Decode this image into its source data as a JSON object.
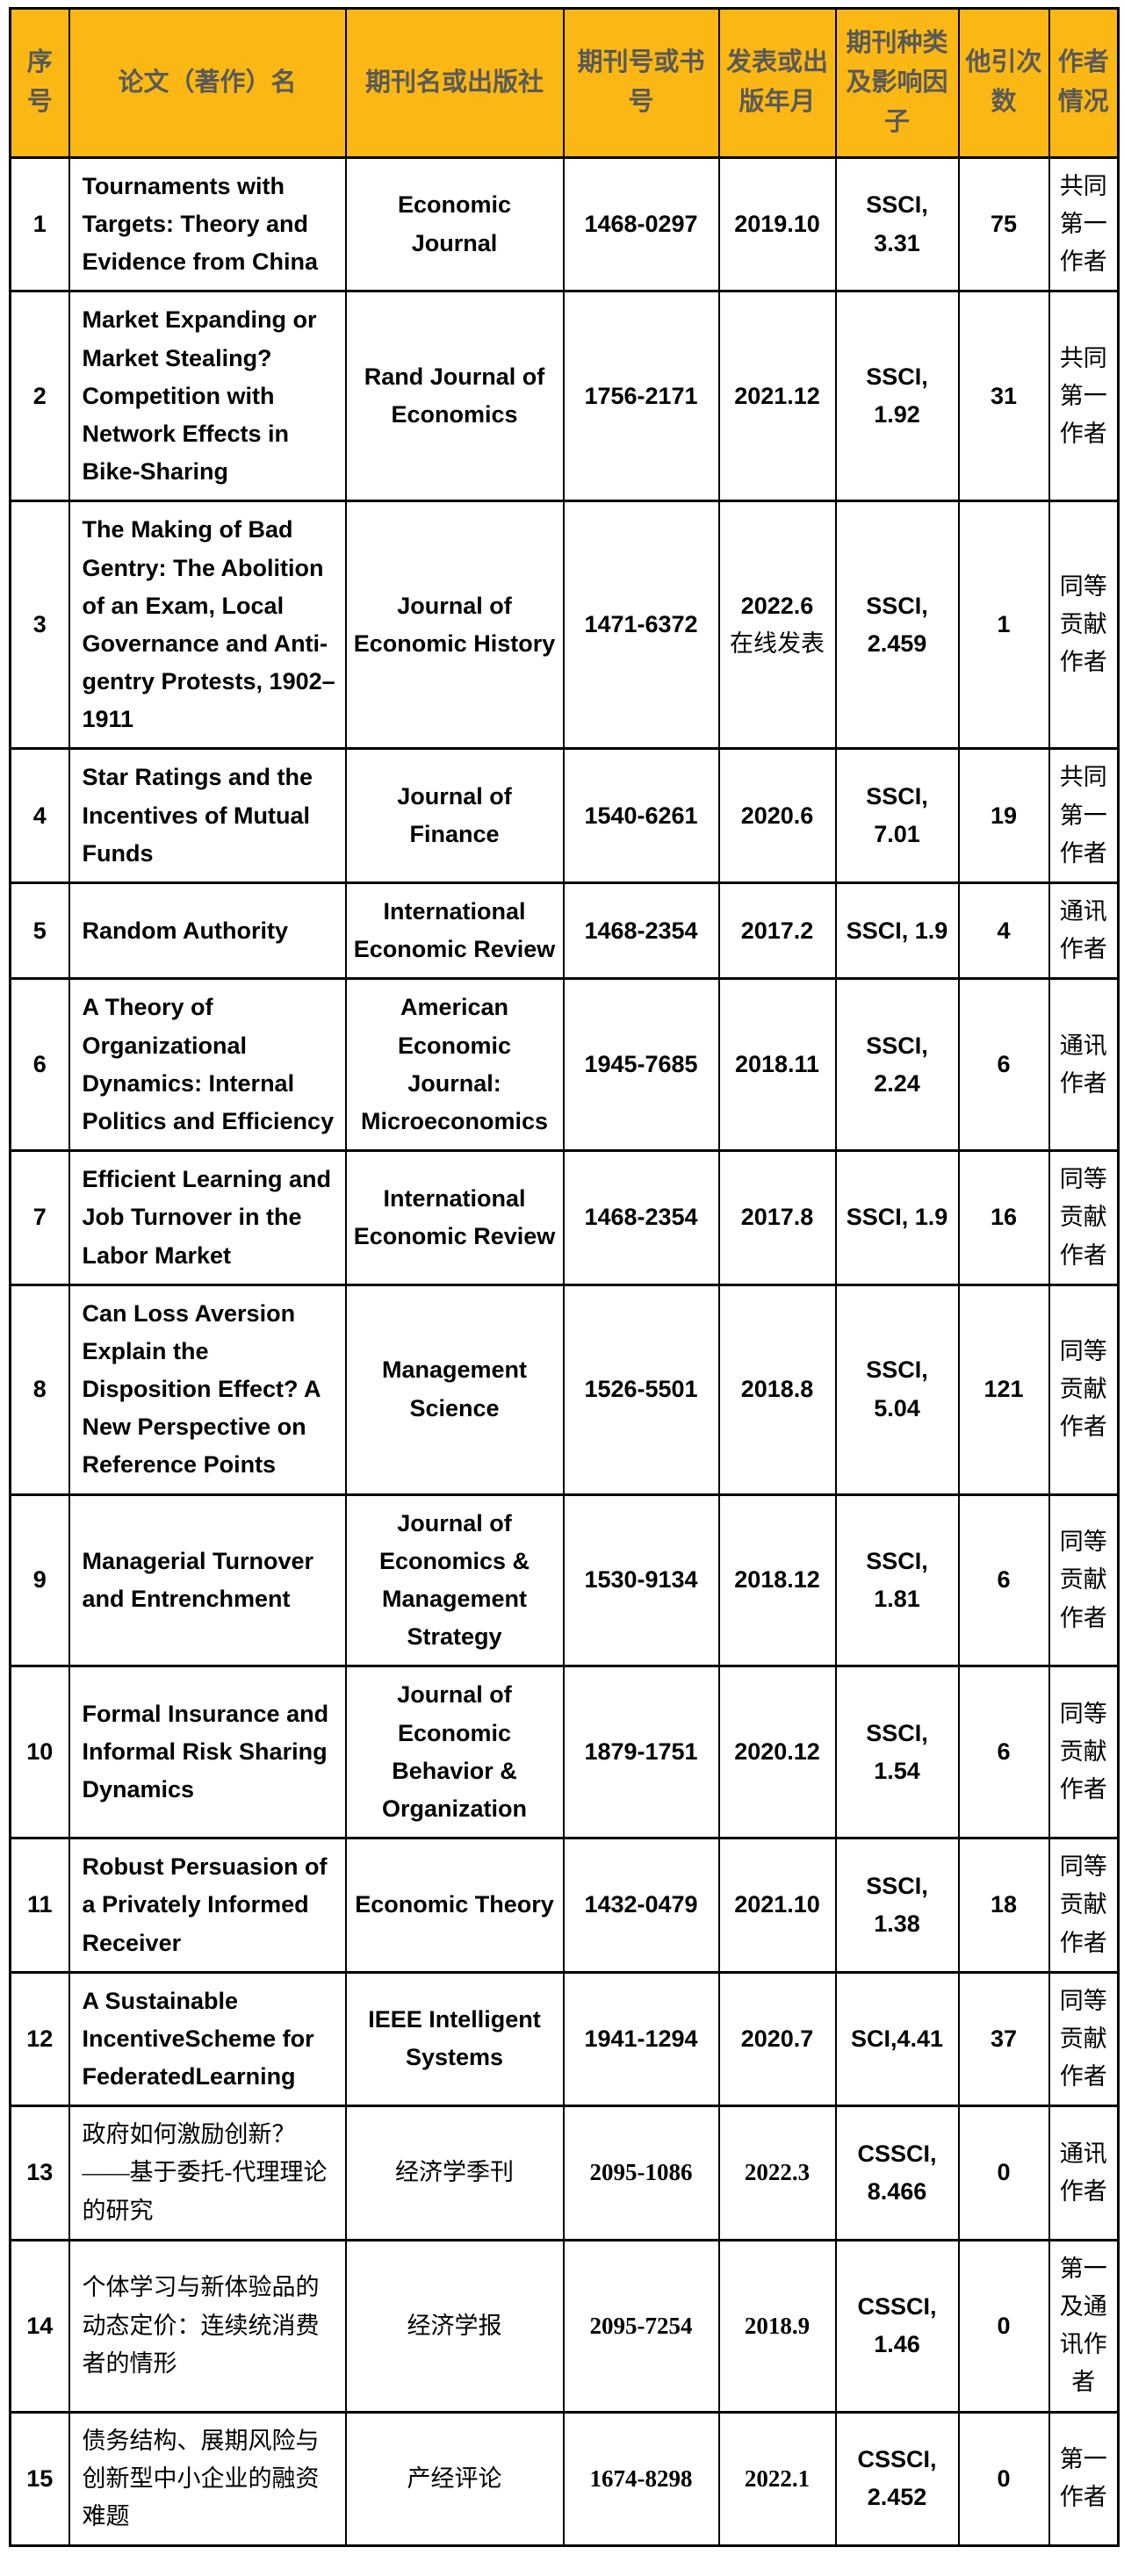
{
  "colors": {
    "header_bg": "#FBB814",
    "header_text": "#595959",
    "body_text": "#000000",
    "border": "#000000"
  },
  "table": {
    "columns": [
      "序号",
      "论文（著作）名",
      "期刊名或出版社",
      "期刊号或书号",
      "发表或出版年月",
      "期刊种类及影响因子",
      "他引次数",
      "作者情况"
    ],
    "rows": [
      {
        "no": "1",
        "style": "en",
        "title": "Tournaments with Targets: Theory and Evidence from China",
        "journal": "Economic Journal",
        "issn": "1468-0297",
        "date": "2019.10",
        "impact": "SSCI, 3.31",
        "citations": "75",
        "author": "共同第一作者"
      },
      {
        "no": "2",
        "style": "en",
        "title": "Market Expanding or Market Stealing? Competition with Network Effects in Bike-Sharing",
        "journal": "Rand Journal of Economics",
        "issn": "1756-2171",
        "date": "2021.12",
        "impact": "SSCI, 1.92",
        "citations": "31",
        "author": "共同第一作者"
      },
      {
        "no": "3",
        "style": "en",
        "title": "The Making of Bad Gentry: The Abolition of an Exam, Local Governance and Anti-gentry Protests, 1902–1911",
        "journal": "Journal of Economic History",
        "issn": "1471-6372",
        "date": "2022.6",
        "date_note": "在线发表",
        "impact": "SSCI, 2.459",
        "citations": "1",
        "author": "同等贡献作者"
      },
      {
        "no": "4",
        "style": "en",
        "title": "Star Ratings and the Incentives of Mutual Funds",
        "journal": "Journal of Finance",
        "issn": "1540-6261",
        "date": "2020.6",
        "impact": "SSCI, 7.01",
        "citations": "19",
        "author": "共同第一作者"
      },
      {
        "no": "5",
        "style": "en",
        "title": "Random Authority",
        "journal": "International Economic Review",
        "issn": "1468-2354",
        "date": "2017.2",
        "impact": "SSCI, 1.9",
        "citations": "4",
        "author": "通讯作者"
      },
      {
        "no": "6",
        "style": "en",
        "title": "A Theory of Organizational Dynamics: Internal Politics and Efficiency",
        "journal": "American Economic Journal: Microeconomics",
        "issn": "1945-7685",
        "date": "2018.11",
        "impact": "SSCI, 2.24",
        "citations": "6",
        "author": "通讯作者"
      },
      {
        "no": "7",
        "style": "en",
        "title": "Efficient Learning and Job Turnover in the Labor Market",
        "journal": "International Economic Review",
        "issn": "1468-2354",
        "date": "2017.8",
        "impact": "SSCI, 1.9",
        "citations": "16",
        "author": "同等贡献作者"
      },
      {
        "no": "8",
        "style": "en",
        "title": "Can Loss Aversion Explain the Disposition Effect? A New Perspective on Reference Points",
        "journal": "Management Science",
        "issn": "1526-5501",
        "date": "2018.8",
        "impact": "SSCI, 5.04",
        "citations": "121",
        "author": "同等贡献作者"
      },
      {
        "no": "9",
        "style": "en",
        "title": "Managerial Turnover and Entrenchment",
        "journal": "Journal of Economics & Management Strategy",
        "issn": "1530-9134",
        "date": "2018.12",
        "impact": "SSCI, 1.81",
        "citations": "6",
        "author": "同等贡献作者"
      },
      {
        "no": "10",
        "style": "en",
        "title": "Formal Insurance and Informal Risk Sharing Dynamics",
        "journal": "Journal of Economic Behavior & Organization",
        "issn": "1879-1751",
        "date": "2020.12",
        "impact": "SSCI, 1.54",
        "citations": "6",
        "author": "同等贡献作者"
      },
      {
        "no": "11",
        "style": "en",
        "title": "Robust Persuasion of a Privately Informed Receiver",
        "journal": "Economic Theory",
        "issn": "1432-0479",
        "date": "2021.10",
        "impact": "SSCI, 1.38",
        "citations": "18",
        "author": "同等贡献作者"
      },
      {
        "no": "12",
        "style": "en",
        "title": "A Sustainable IncentiveScheme for FederatedLearning",
        "journal": "IEEE Intelligent Systems",
        "issn": "1941-1294",
        "date": "2020.7",
        "impact": "SCI,4.41",
        "citations": "37",
        "author": "同等贡献作者"
      },
      {
        "no": "13",
        "style": "zh",
        "title": "政府如何激励创新？——基于委托-代理理论的研究",
        "journal": "经济学季刊",
        "issn": "2095-1086",
        "date": "2022.3",
        "impact": "CSSCI, 8.466",
        "citations": "0",
        "author": "通讯作者"
      },
      {
        "no": "14",
        "style": "zh",
        "title": "个体学习与新体验品的动态定价：连续统消费者的情形",
        "journal": "经济学报",
        "issn": "2095-7254",
        "date": "2018.9",
        "impact": "CSSCI, 1.46",
        "citations": "0",
        "author": "第一及通讯作者"
      },
      {
        "no": "15",
        "style": "zh",
        "title": "债务结构、展期风险与创新型中小企业的融资难题",
        "journal": "产经评论",
        "issn": "1674-8298",
        "date": "2022.1",
        "impact": "CSSCI, 2.452",
        "citations": "0",
        "author": "第一作者"
      }
    ]
  }
}
